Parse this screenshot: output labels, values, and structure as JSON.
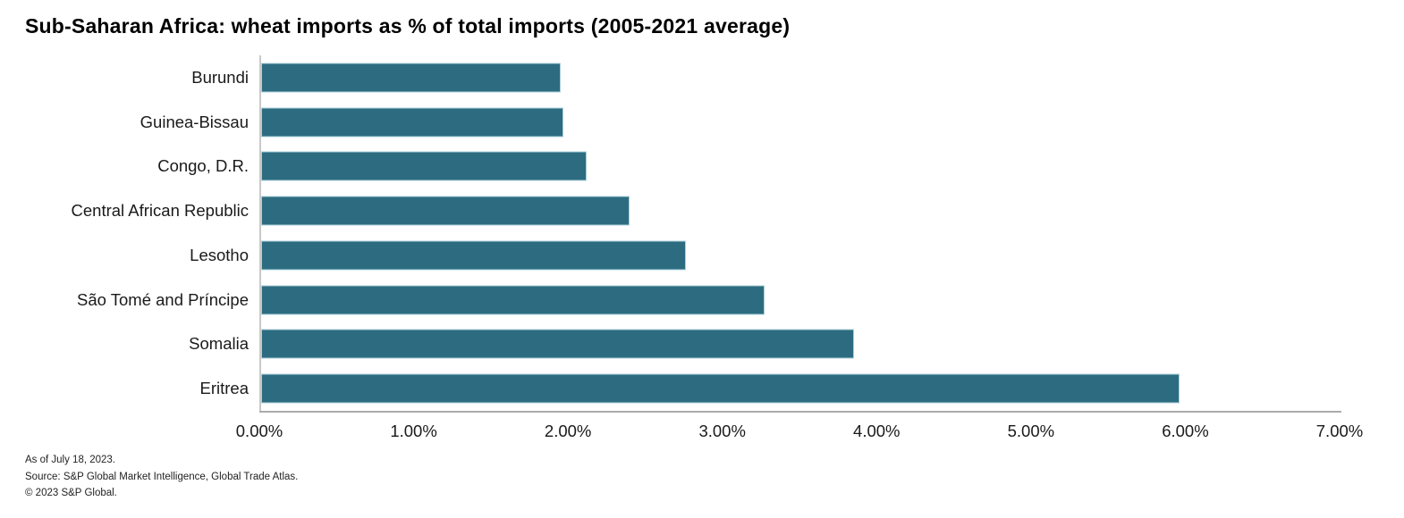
{
  "title": "Sub-Saharan Africa: wheat imports as % of total imports (2005-2021 average)",
  "colors": {
    "bar": "#2D6C80",
    "axis_line": "#c9c9c9",
    "baseline": "#ababab",
    "text": "#1a1a1a"
  },
  "chart_data": {
    "type": "bar",
    "orientation": "horizontal",
    "title": "Sub-Saharan Africa: wheat imports as % of total imports (2005-2021 average)",
    "categories": [
      "Burundi",
      "Guinea-Bissau",
      "Congo, D.R.",
      "Central African Republic",
      "Lesotho",
      "São Tomé and Príncipe",
      "Somalia",
      "Eritrea"
    ],
    "values": [
      1.94,
      1.96,
      2.11,
      2.39,
      2.75,
      3.26,
      3.84,
      5.95
    ],
    "value_unit": "percent",
    "xlabel": "",
    "ylabel": "",
    "xlim": [
      0,
      7
    ],
    "x_tick_values": [
      0,
      1,
      2,
      3,
      4,
      5,
      6,
      7
    ],
    "x_tick_labels": [
      "0.00%",
      "1.00%",
      "2.00%",
      "3.00%",
      "4.00%",
      "5.00%",
      "6.00%",
      "7.00%"
    ],
    "grid": false,
    "legend": false
  },
  "footnotes": [
    "As of July 18, 2023.",
    "Source: S&P Global Market Intelligence, Global Trade Atlas.",
    "© 2023 S&P Global."
  ]
}
